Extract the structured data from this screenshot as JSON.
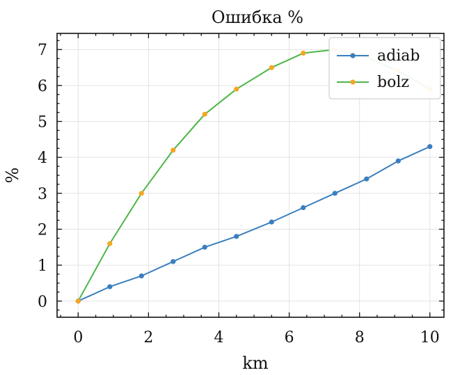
{
  "chart_data": {
    "type": "line",
    "title": "Ошибка %",
    "xlabel": "km",
    "ylabel": "%",
    "xlim": [
      -0.6,
      10.4
    ],
    "ylim": [
      -0.45,
      7.45
    ],
    "xticks": [
      0,
      2,
      4,
      6,
      8,
      10
    ],
    "yticks": [
      0,
      1,
      2,
      3,
      4,
      5,
      6,
      7
    ],
    "grid": true,
    "legend_position": "top-right",
    "series": [
      {
        "name": "adiab",
        "line_color": "#3a7ebf",
        "marker_color": "#3a7ebf",
        "x": [
          0,
          0.9,
          1.8,
          2.7,
          3.6,
          4.5,
          5.5,
          6.4,
          7.3,
          8.2,
          9.1,
          10
        ],
        "y": [
          0,
          0.4,
          0.7,
          1.1,
          1.5,
          1.8,
          2.2,
          2.6,
          3.0,
          3.4,
          3.9,
          4.3
        ]
      },
      {
        "name": "bolz",
        "line_color": "#4cb648",
        "marker_color": "#f5a623",
        "x": [
          0,
          0.9,
          1.8,
          2.7,
          3.6,
          4.5,
          5.5,
          6.4,
          7.3,
          8.2,
          9.1,
          10
        ],
        "y": [
          0,
          1.6,
          3.0,
          4.2,
          5.2,
          5.9,
          6.5,
          6.9,
          7.0,
          6.8,
          6.4,
          5.9
        ]
      }
    ]
  }
}
